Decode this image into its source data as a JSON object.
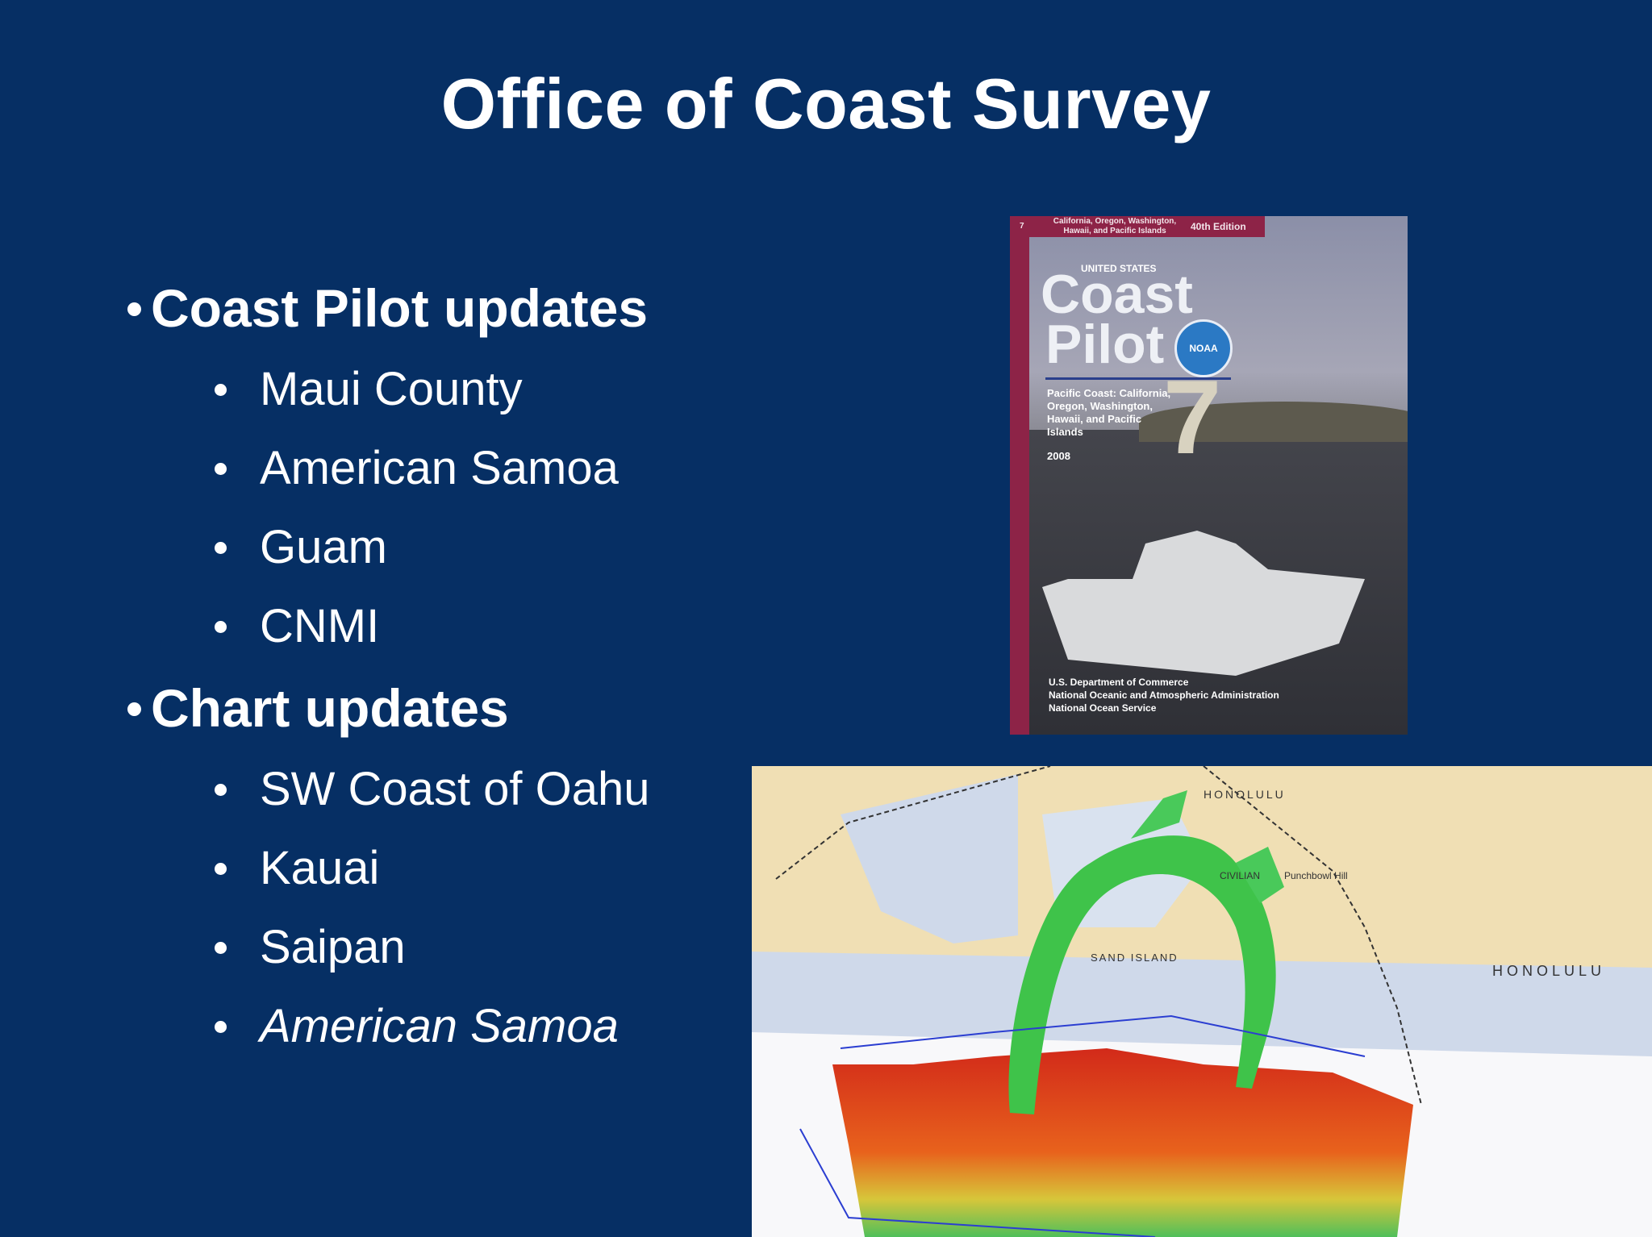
{
  "slide": {
    "title": "Office of Coast Survey",
    "sections": [
      {
        "heading": "Coast Pilot updates",
        "items": [
          {
            "text": "Maui County",
            "italic": false
          },
          {
            "text": "American Samoa",
            "italic": false
          },
          {
            "text": "Guam",
            "italic": false
          },
          {
            "text": "CNMI",
            "italic": false
          }
        ]
      },
      {
        "heading": "Chart updates",
        "items": [
          {
            "text": "SW Coast of Oahu",
            "italic": false
          },
          {
            "text": "Kauai",
            "italic": false
          },
          {
            "text": "Saipan",
            "italic": false
          },
          {
            "text": "American Samoa",
            "italic": true
          }
        ]
      }
    ]
  },
  "cover": {
    "volume": "7",
    "region": "California, Oregon, Washington, Hawaii, and Pacific Islands",
    "edition": "40th Edition",
    "country": "UNITED STATES",
    "title_line1": "Coast",
    "title_line2": "Pilot",
    "logo_text": "NOAA",
    "big_number": "7",
    "subtitle": "Pacific Coast: California, Oregon, Washington, Hawaii, and Pacific Islands",
    "year": "2008",
    "publisher_line1": "U.S. Department of Commerce",
    "publisher_line2": "National Oceanic and Atmospheric Administration",
    "publisher_line3": "National Ocean Service"
  },
  "map": {
    "label_honolulu_small": "HONOLULU",
    "label_sand_island": "SAND ISLAND",
    "label_honolulu_large": "HONOLULU",
    "label_civilian": "CIVILIAN",
    "label_punchbowl": "Punchbowl Hill"
  },
  "colors": {
    "background": "#062f64",
    "text": "#ffffff",
    "cover_accent": "#8d2347"
  }
}
